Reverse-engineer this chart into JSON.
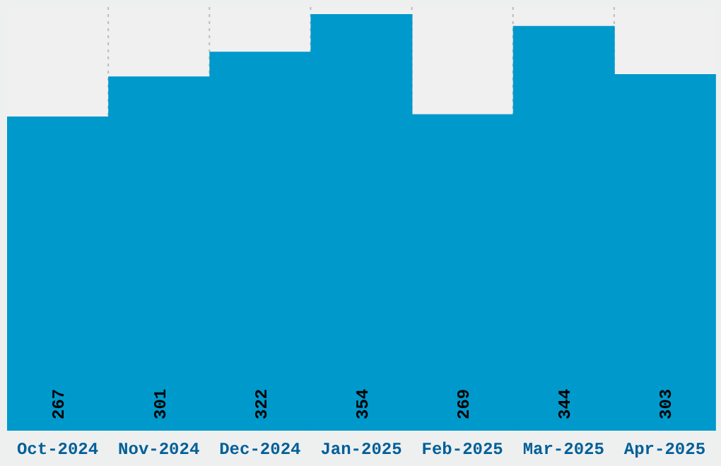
{
  "chart_data": {
    "type": "bar",
    "categories": [
      "Oct-2024",
      "Nov-2024",
      "Dec-2024",
      "Jan-2025",
      "Feb-2025",
      "Mar-2025",
      "Apr-2025"
    ],
    "values": [
      267,
      301,
      322,
      354,
      269,
      344,
      303
    ],
    "color": "#0099cc",
    "grid": "x",
    "tick_labels": "x",
    "data_labels": true
  }
}
